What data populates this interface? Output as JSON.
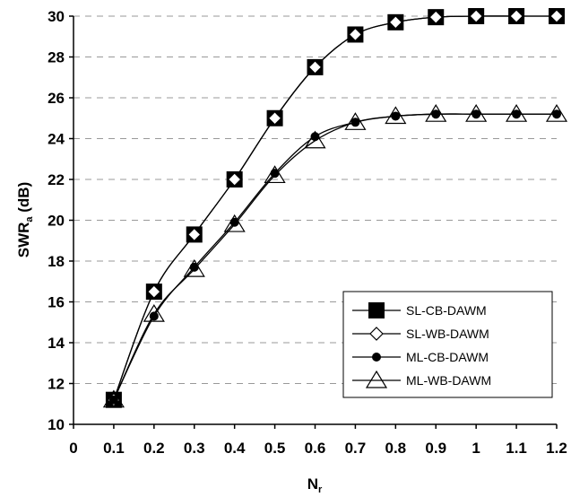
{
  "chart_data": {
    "type": "line",
    "xlabel": "N",
    "xlabel_sub": "r",
    "ylabel": "SWR",
    "ylabel_sub": "a",
    "ylabel_suffix": " (dB)",
    "xlim": [
      0,
      1.2
    ],
    "ylim": [
      10,
      30
    ],
    "x_ticks": [
      "0",
      "0.1",
      "0.2",
      "0.3",
      "0.4",
      "0.5",
      "0.6",
      "0.7",
      "0.8",
      "0.9",
      "1",
      "1.1",
      "1.2"
    ],
    "y_ticks": [
      "10",
      "12",
      "14",
      "16",
      "18",
      "20",
      "22",
      "24",
      "26",
      "28",
      "30"
    ],
    "grid": "horizontal dashed",
    "legend_position": "lower-right",
    "series": [
      {
        "name": "SL-CB-DAWM",
        "marker": "filled-square",
        "x": [
          0.1,
          0.2,
          0.3,
          0.4,
          0.5,
          0.6,
          0.7,
          0.8,
          0.9,
          1.0,
          1.1,
          1.2
        ],
        "values": [
          11.2,
          16.5,
          19.3,
          22.0,
          25.0,
          27.5,
          29.1,
          29.7,
          29.95,
          30.0,
          30.0,
          30.0
        ]
      },
      {
        "name": "SL-WB-DAWM",
        "marker": "open-diamond",
        "x": [
          0.1,
          0.2,
          0.3,
          0.4,
          0.5,
          0.6,
          0.7,
          0.8,
          0.9,
          1.0,
          1.1,
          1.2
        ],
        "values": [
          11.2,
          16.5,
          19.3,
          22.0,
          25.0,
          27.5,
          29.1,
          29.7,
          29.95,
          30.0,
          30.0,
          30.0
        ]
      },
      {
        "name": "ML-CB-DAWM",
        "marker": "filled-circle",
        "x": [
          0.1,
          0.2,
          0.3,
          0.4,
          0.5,
          0.6,
          0.7,
          0.8,
          0.9,
          1.0,
          1.1,
          1.2
        ],
        "values": [
          11.2,
          15.3,
          17.7,
          19.9,
          22.3,
          24.1,
          24.8,
          25.1,
          25.2,
          25.2,
          25.2,
          25.2
        ]
      },
      {
        "name": "ML-WB-DAWM",
        "marker": "open-triangle",
        "x": [
          0.1,
          0.2,
          0.3,
          0.4,
          0.5,
          0.6,
          0.7,
          0.8,
          0.9,
          1.0,
          1.1,
          1.2
        ],
        "values": [
          11.2,
          15.4,
          17.6,
          19.8,
          22.2,
          23.9,
          24.8,
          25.1,
          25.2,
          25.2,
          25.2,
          25.2
        ]
      }
    ]
  },
  "colors": {
    "line": "#000000",
    "grid": "#999999",
    "background": "#ffffff"
  }
}
